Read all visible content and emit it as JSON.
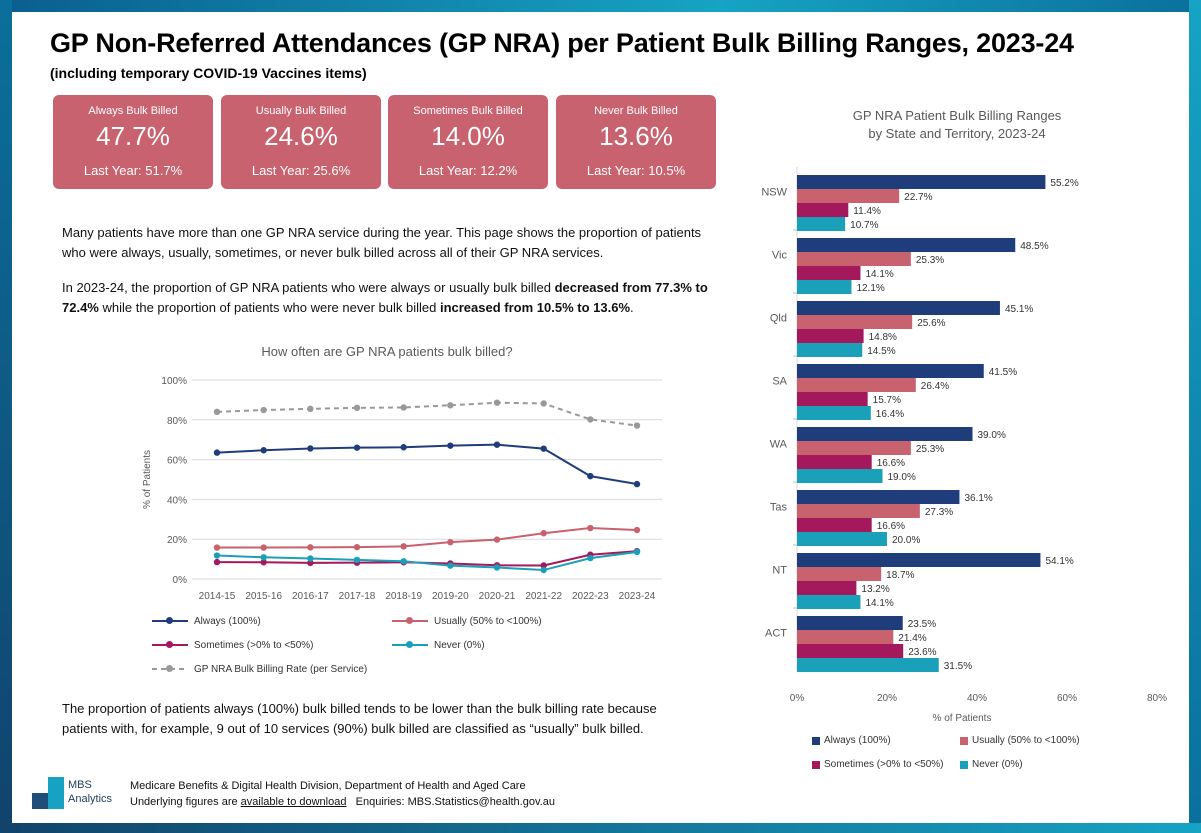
{
  "title": "GP Non-Referred Attendances (GP NRA) per Patient Bulk Billing Ranges, 2023-24",
  "subtitle": "(including temporary COVID-19 Vaccines items)",
  "kpis": [
    {
      "label": "Always Bulk Billed",
      "value": "47.7%",
      "last_year": "Last Year: 51.7%"
    },
    {
      "label": "Usually Bulk Billed",
      "value": "24.6%",
      "last_year": "Last Year: 25.6%"
    },
    {
      "label": "Sometimes Bulk Billed",
      "value": "14.0%",
      "last_year": "Last Year: 12.2%"
    },
    {
      "label": "Never Bulk Billed",
      "value": "13.6%",
      "last_year": "Last Year: 10.5%"
    }
  ],
  "text": {
    "para1": "Many patients have more than one GP NRA service during the year. This page shows the proportion of patients who were always, usually, sometimes, or never bulk billed across all of their GP NRA services.",
    "para2_a": "In 2023-24, the proportion of GP NRA patients who were always or usually bulk billed ",
    "para2_b": "decreased from 77.3% to 72.4%",
    "para2_c": " while the proportion of patients who were never bulk billed ",
    "para2_d": "increased from 10.5% to 13.6%",
    "para2_e": ".",
    "para3": "The proportion of patients always (100%) bulk billed tends to be lower than the bulk billing rate because patients with, for example, 9 out of 10 services (90%) bulk billed are classified as “usually” bulk billed."
  },
  "footer": {
    "line1": "Medicare Benefits & Digital Health Division, Department of Health and Aged Care",
    "line2_prefix": "Underlying figures are ",
    "line2_link": "available to download",
    "line2_suffix": "   Enquiries: MBS.Statistics@health.gov.au",
    "logo_line1": "MBS",
    "logo_line2": "Analytics"
  },
  "colors": {
    "always": "#1f3d7a",
    "usually": "#c8626f",
    "sometimes": "#a3195b",
    "never": "#1aa0b8",
    "rate": "#999999"
  },
  "chart_data": [
    {
      "type": "line",
      "title": "How often are GP NRA patients bulk billed?",
      "xlabel": "",
      "ylabel": "% of Patients",
      "ylim": [
        0,
        100
      ],
      "yticks": [
        "0%",
        "20%",
        "40%",
        "60%",
        "80%",
        "100%"
      ],
      "categories": [
        "2014-15",
        "2015-16",
        "2016-17",
        "2017-18",
        "2018-19",
        "2019-20",
        "2020-21",
        "2021-22",
        "2022-23",
        "2023-24"
      ],
      "series": [
        {
          "key": "always",
          "name": "Always (100%)",
          "values": [
            63.5,
            64.7,
            65.6,
            66.0,
            66.2,
            67.0,
            67.5,
            65.5,
            51.7,
            47.7
          ]
        },
        {
          "key": "usually",
          "name": "Usually (50% to <100%)",
          "values": [
            15.8,
            15.8,
            15.9,
            16.0,
            16.4,
            18.5,
            19.8,
            23.0,
            25.6,
            24.6
          ]
        },
        {
          "key": "sometimes",
          "name": "Sometimes (>0% to <50%)",
          "values": [
            8.5,
            8.4,
            8.1,
            8.2,
            8.4,
            7.8,
            6.9,
            6.8,
            12.2,
            14.0
          ]
        },
        {
          "key": "never",
          "name": "Never (0%)",
          "values": [
            11.8,
            10.9,
            10.3,
            9.6,
            8.9,
            6.7,
            5.8,
            4.5,
            10.5,
            13.6
          ]
        },
        {
          "key": "rate",
          "name": "GP NRA Bulk Billing Rate (per Service)",
          "dashed": true,
          "values": [
            84.0,
            84.9,
            85.5,
            86.0,
            86.2,
            87.3,
            88.6,
            88.2,
            80.2,
            77.1
          ]
        }
      ]
    },
    {
      "type": "bar",
      "orientation": "horizontal",
      "title": "GP NRA Patient Bulk Billing Ranges",
      "subtitle": "by State and Territory, 2023-24",
      "xlabel": "% of Patients",
      "xlim": [
        0,
        80
      ],
      "xticks": [
        "0%",
        "20%",
        "40%",
        "60%",
        "80%"
      ],
      "categories": [
        "NSW",
        "Vic",
        "Qld",
        "SA",
        "WA",
        "Tas",
        "NT",
        "ACT"
      ],
      "series": [
        {
          "key": "always",
          "name": "Always (100%)",
          "values": [
            55.2,
            48.5,
            45.1,
            41.5,
            39.0,
            36.1,
            54.1,
            23.5
          ],
          "labels": [
            "55.2%",
            "48.5%",
            "45.1%",
            "41.5%",
            "39.0%",
            "36.1%",
            "54.1%",
            "23.5%"
          ]
        },
        {
          "key": "usually",
          "name": "Usually (50% to <100%)",
          "values": [
            22.7,
            25.3,
            25.6,
            26.4,
            25.3,
            27.3,
            18.7,
            21.4
          ],
          "labels": [
            "22.7%",
            "25.3%",
            "25.6%",
            "26.4%",
            "25.3%",
            "27.3%",
            "18.7%",
            "21.4%"
          ]
        },
        {
          "key": "sometimes",
          "name": "Sometimes (>0% to <50%)",
          "values": [
            11.4,
            14.1,
            14.8,
            15.7,
            16.6,
            16.6,
            13.2,
            23.6
          ],
          "labels": [
            "11.4%",
            "14.1%",
            "14.8%",
            "15.7%",
            "16.6%",
            "16.6%",
            "13.2%",
            "23.6%"
          ]
        },
        {
          "key": "never",
          "name": "Never (0%)",
          "values": [
            10.7,
            12.1,
            14.5,
            16.4,
            19.0,
            20.0,
            14.1,
            31.5
          ],
          "labels": [
            "10.7%",
            "12.1%",
            "14.5%",
            "16.4%",
            "19.0%",
            "20.0%",
            "14.1%",
            "31.5%"
          ]
        }
      ]
    }
  ]
}
